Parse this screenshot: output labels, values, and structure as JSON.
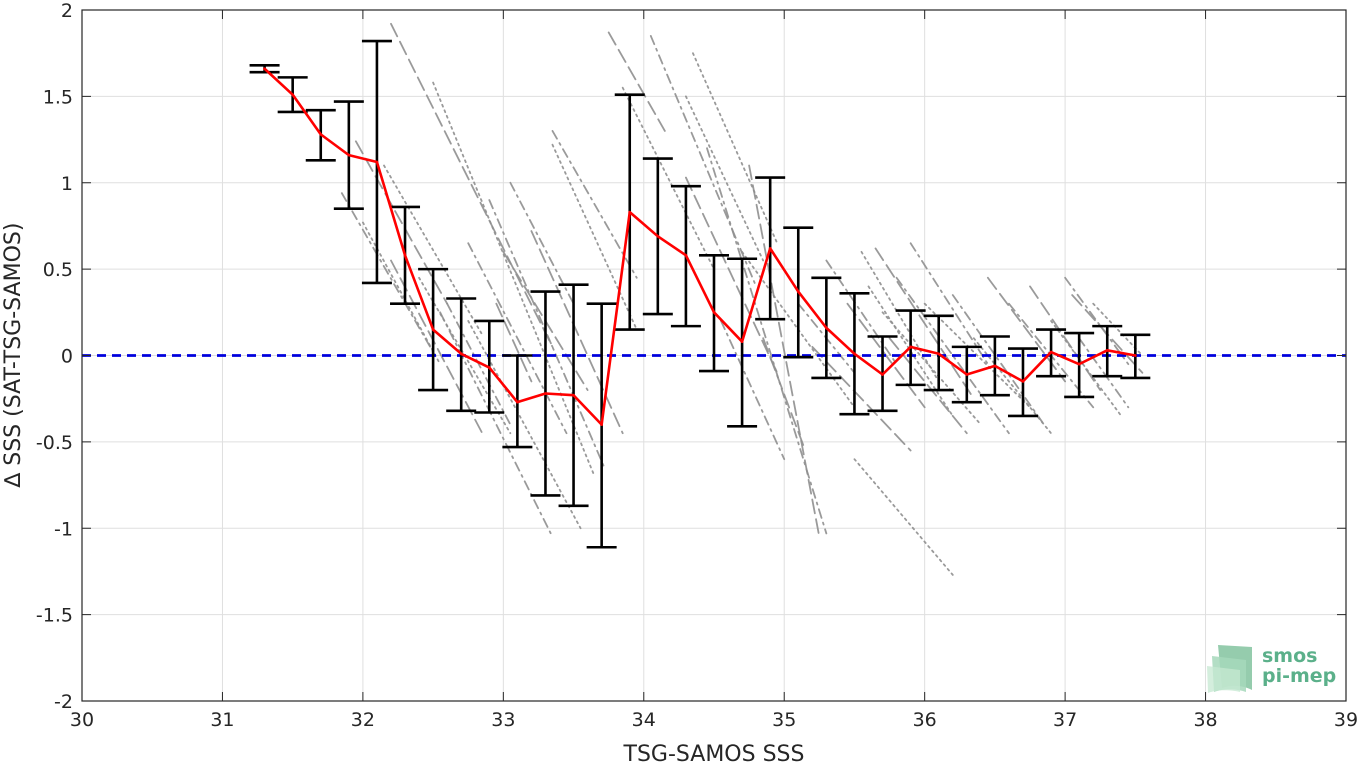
{
  "chart_data": {
    "type": "line",
    "xlabel": "TSG-SAMOS SSS",
    "ylabel": "∆ SSS (SAT-TSG-SAMOS)",
    "xlim": [
      30,
      39
    ],
    "ylim": [
      -2,
      2
    ],
    "x_ticks": [
      "30",
      "31",
      "32",
      "33",
      "34",
      "35",
      "36",
      "37",
      "38",
      "39"
    ],
    "y_ticks": [
      "2",
      "1.5",
      "1",
      "0.5",
      "0",
      "-0.5",
      "-1",
      "-1.5",
      "-2"
    ],
    "grid": true,
    "zero_line": {
      "y": 0,
      "color": "#0000dd",
      "style": "dashed"
    },
    "mean_series": {
      "color": "#ff0000",
      "x": [
        31.3,
        31.5,
        31.7,
        31.9,
        32.1,
        32.3,
        32.5,
        32.7,
        32.9,
        33.1,
        33.3,
        33.5,
        33.7,
        33.9,
        34.1,
        34.3,
        34.5,
        34.7,
        34.9,
        35.1,
        35.3,
        35.5,
        35.7,
        35.9,
        36.1,
        36.3,
        36.5,
        36.7,
        36.9,
        37.1,
        37.3,
        37.5
      ],
      "y": [
        1.66,
        1.51,
        1.28,
        1.16,
        1.12,
        0.58,
        0.15,
        0.01,
        -0.07,
        -0.27,
        -0.22,
        -0.23,
        -0.4,
        0.83,
        0.69,
        0.58,
        0.25,
        0.08,
        0.62,
        0.37,
        0.16,
        0.01,
        -0.11,
        0.05,
        0.01,
        -0.11,
        -0.06,
        -0.15,
        0.02,
        -0.05,
        0.03,
        0.0
      ],
      "err_low": [
        1.64,
        1.41,
        1.13,
        0.85,
        0.42,
        0.3,
        -0.2,
        -0.32,
        -0.33,
        -0.53,
        -0.81,
        -0.87,
        -1.11,
        0.15,
        0.24,
        0.17,
        -0.09,
        -0.41,
        0.21,
        -0.01,
        -0.13,
        -0.34,
        -0.32,
        -0.17,
        -0.2,
        -0.27,
        -0.23,
        -0.35,
        -0.12,
        -0.24,
        -0.12,
        -0.13
      ],
      "err_high": [
        1.68,
        1.61,
        1.42,
        1.47,
        1.82,
        0.86,
        0.5,
        0.33,
        0.2,
        0.0,
        0.37,
        0.41,
        0.3,
        1.51,
        1.14,
        0.98,
        0.58,
        0.56,
        1.03,
        0.74,
        0.45,
        0.36,
        0.11,
        0.26,
        0.23,
        0.05,
        0.11,
        0.04,
        0.15,
        0.13,
        0.17,
        0.12
      ]
    },
    "scatter_traces": {
      "color": "#909090",
      "segments": [
        [
          [
            32.0,
            0.77
          ],
          [
            32.55,
            -0.05
          ]
        ],
        [
          [
            31.85,
            0.94
          ],
          [
            32.5,
            0.02
          ]
        ],
        [
          [
            32.2,
            0.55
          ],
          [
            32.85,
            -0.45
          ]
        ],
        [
          [
            32.4,
            0.45
          ],
          [
            33.05,
            -0.45
          ]
        ],
        [
          [
            32.6,
            0.3
          ],
          [
            33.05,
            -0.4
          ]
        ],
        [
          [
            31.95,
            1.24
          ],
          [
            32.6,
            0.3
          ]
        ],
        [
          [
            32.15,
            1.1
          ],
          [
            32.85,
            0.12
          ]
        ],
        [
          [
            32.75,
            0.65
          ],
          [
            33.45,
            -0.45
          ]
        ],
        [
          [
            32.2,
            1.92
          ],
          [
            33.35,
            0.05
          ]
        ],
        [
          [
            32.5,
            1.58
          ],
          [
            33.65,
            -0.7
          ]
        ],
        [
          [
            32.9,
            0.9
          ],
          [
            33.72,
            -0.65
          ]
        ],
        [
          [
            33.2,
            0.72
          ],
          [
            33.85,
            -0.45
          ]
        ],
        [
          [
            33.35,
            1.22
          ],
          [
            33.95,
            0.15
          ]
        ],
        [
          [
            33.05,
            1.0
          ],
          [
            33.5,
            0.3
          ]
        ],
        [
          [
            32.95,
            0.3
          ],
          [
            33.2,
            -0.15
          ]
        ],
        [
          [
            32.75,
            0.2
          ],
          [
            33.55,
            -1.0
          ]
        ],
        [
          [
            32.55,
            0.25
          ],
          [
            33.35,
            -1.05
          ]
        ],
        [
          [
            33.0,
            0.6
          ],
          [
            33.6,
            -0.2
          ]
        ],
        [
          [
            34.3,
            1.5
          ],
          [
            34.85,
            0.55
          ]
        ],
        [
          [
            34.45,
            1.2
          ],
          [
            35.3,
            -1.03
          ]
        ],
        [
          [
            34.75,
            1.1
          ],
          [
            35.25,
            -1.05
          ]
        ],
        [
          [
            34.35,
            1.75
          ],
          [
            34.95,
            0.65
          ]
        ],
        [
          [
            34.05,
            1.85
          ],
          [
            34.8,
            0.4
          ]
        ],
        [
          [
            33.75,
            1.87
          ],
          [
            34.15,
            1.3
          ]
        ],
        [
          [
            33.85,
            1.55
          ],
          [
            34.5,
            0.5
          ]
        ],
        [
          [
            33.35,
            1.3
          ],
          [
            33.95,
            0.45
          ]
        ],
        [
          [
            34.3,
            1.03
          ],
          [
            34.95,
            -0.1
          ]
        ],
        [
          [
            34.7,
            0.6
          ],
          [
            35.5,
            -0.3
          ]
        ],
        [
          [
            34.55,
            0.2
          ],
          [
            35.0,
            -0.6
          ]
        ],
        [
          [
            34.85,
            0.1
          ],
          [
            35.15,
            -0.55
          ]
        ],
        [
          [
            35.5,
            -0.6
          ],
          [
            36.2,
            -1.27
          ]
        ],
        [
          [
            35.1,
            0.3
          ],
          [
            35.5,
            -0.1
          ]
        ],
        [
          [
            35.2,
            0.05
          ],
          [
            35.9,
            -0.55
          ]
        ],
        [
          [
            35.55,
            0.6
          ],
          [
            36.1,
            -0.15
          ]
        ],
        [
          [
            35.3,
            0.55
          ],
          [
            35.8,
            -0.05
          ]
        ],
        [
          [
            35.45,
            0.3
          ],
          [
            36.0,
            -0.3
          ]
        ],
        [
          [
            35.6,
            0.4
          ],
          [
            36.2,
            -0.35
          ]
        ],
        [
          [
            35.9,
            0.65
          ],
          [
            36.45,
            -0.05
          ]
        ],
        [
          [
            35.65,
            0.62
          ],
          [
            36.35,
            -0.25
          ]
        ],
        [
          [
            35.7,
            0.25
          ],
          [
            36.4,
            -0.4
          ]
        ],
        [
          [
            35.8,
            0.45
          ],
          [
            36.6,
            -0.45
          ]
        ],
        [
          [
            35.75,
            0.1
          ],
          [
            36.3,
            -0.45
          ]
        ],
        [
          [
            36.0,
            0.3
          ],
          [
            36.75,
            -0.3
          ]
        ],
        [
          [
            36.2,
            0.35
          ],
          [
            36.85,
            -0.4
          ]
        ],
        [
          [
            36.45,
            0.45
          ],
          [
            37.0,
            -0.15
          ]
        ],
        [
          [
            36.35,
            0.1
          ],
          [
            36.9,
            -0.45
          ]
        ],
        [
          [
            36.6,
            0.3
          ],
          [
            37.2,
            -0.3
          ]
        ],
        [
          [
            36.75,
            0.4
          ],
          [
            37.25,
            -0.2
          ]
        ],
        [
          [
            36.9,
            0.2
          ],
          [
            37.4,
            -0.35
          ]
        ],
        [
          [
            37.0,
            0.45
          ],
          [
            37.45,
            -0.05
          ]
        ],
        [
          [
            37.05,
            0.35
          ],
          [
            37.55,
            -0.1
          ]
        ],
        [
          [
            37.2,
            0.3
          ],
          [
            37.55,
            0.0
          ]
        ],
        [
          [
            37.1,
            0.1
          ],
          [
            37.45,
            -0.3
          ]
        ]
      ]
    }
  },
  "logo": {
    "line1": "smos",
    "line2": "pi-mep",
    "colors": [
      "#8fc9a9",
      "#a6d8bb",
      "#c6e8d2"
    ]
  }
}
